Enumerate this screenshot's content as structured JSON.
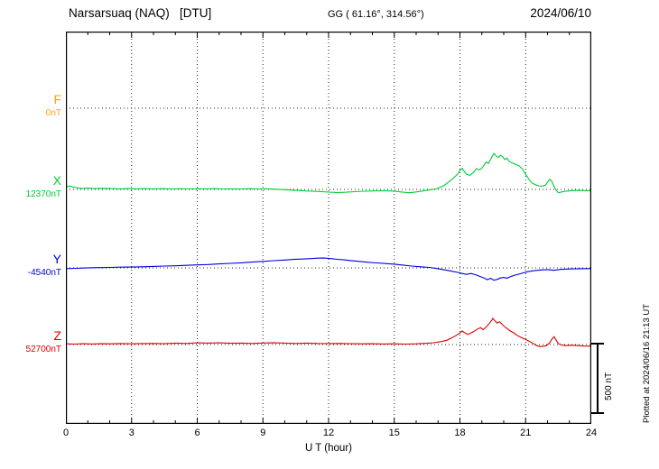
{
  "header": {
    "station_title": "Narsarsuaq (NAQ)   [DTU]",
    "gg_coords": "GG ( 61.16°, 314.56°)",
    "date": "2024/06/10"
  },
  "axis": {
    "xlabel": "U T (hour)",
    "xticks": [
      0,
      3,
      6,
      9,
      12,
      15,
      18,
      21,
      24
    ]
  },
  "scale_bar": {
    "label": "500 nT",
    "nT": 500
  },
  "footer_note": "Plotted at 2024/06/16 21:13 UT",
  "chart_data": {
    "type": "line",
    "title": "Narsarsuaq (NAQ) [DTU] magnetogram 2024/06/10",
    "xlabel": "U T (hour)",
    "x_range_hours": [
      0,
      24
    ],
    "x_major_tick_step_hours": 3,
    "scale_bar_nT": 500,
    "grid": "dotted vertical at 3h steps, dotted horizontal at each series baseline",
    "series": [
      {
        "name": "F",
        "label": "F",
        "baseline_label": "0nT",
        "baseline_nT": 0,
        "color": "#FFA500",
        "visible": false,
        "points": [
          [
            0,
            0
          ],
          [
            24,
            0
          ]
        ]
      },
      {
        "name": "X",
        "label": "X",
        "baseline_label": "12370nT",
        "baseline_nT": 12370,
        "color": "#00CC33",
        "visible": true,
        "points": [
          [
            0,
            18
          ],
          [
            0.2,
            24
          ],
          [
            0.4,
            14
          ],
          [
            0.6,
            9
          ],
          [
            0.8,
            7
          ],
          [
            1,
            10
          ],
          [
            1.3,
            6
          ],
          [
            1.6,
            8
          ],
          [
            2,
            7
          ],
          [
            2.4,
            4
          ],
          [
            2.8,
            6
          ],
          [
            3.2,
            4
          ],
          [
            3.6,
            6
          ],
          [
            4,
            4
          ],
          [
            4.4,
            6
          ],
          [
            4.8,
            3
          ],
          [
            5.2,
            5
          ],
          [
            5.6,
            3
          ],
          [
            6,
            5
          ],
          [
            6.4,
            4
          ],
          [
            6.8,
            6
          ],
          [
            7.2,
            3
          ],
          [
            7.6,
            4
          ],
          [
            8,
            3
          ],
          [
            8.4,
            5
          ],
          [
            8.8,
            3
          ],
          [
            9.2,
            4
          ],
          [
            9.6,
            1
          ],
          [
            10,
            -2
          ],
          [
            10.4,
            -6
          ],
          [
            10.8,
            -9
          ],
          [
            11.2,
            -12
          ],
          [
            11.6,
            -15
          ],
          [
            12,
            -19
          ],
          [
            12.4,
            -22
          ],
          [
            12.8,
            -20
          ],
          [
            13.2,
            -16
          ],
          [
            13.6,
            -13
          ],
          [
            14,
            -11
          ],
          [
            14.4,
            -10
          ],
          [
            14.8,
            -11
          ],
          [
            15.1,
            -14
          ],
          [
            15.4,
            -20
          ],
          [
            15.7,
            -24
          ],
          [
            16,
            -18
          ],
          [
            16.3,
            -11
          ],
          [
            16.6,
            -4
          ],
          [
            16.9,
            4
          ],
          [
            17.1,
            14
          ],
          [
            17.3,
            30
          ],
          [
            17.5,
            55
          ],
          [
            17.7,
            80
          ],
          [
            17.9,
            110
          ],
          [
            18,
            135
          ],
          [
            18.1,
            150
          ],
          [
            18.2,
            128
          ],
          [
            18.3,
            108
          ],
          [
            18.45,
            100
          ],
          [
            18.6,
            118
          ],
          [
            18.75,
            148
          ],
          [
            18.9,
            138
          ],
          [
            19,
            152
          ],
          [
            19.1,
            172
          ],
          [
            19.2,
            196
          ],
          [
            19.3,
            184
          ],
          [
            19.4,
            214
          ],
          [
            19.5,
            242
          ],
          [
            19.55,
            256
          ],
          [
            19.65,
            238
          ],
          [
            19.75,
            226
          ],
          [
            19.85,
            242
          ],
          [
            19.95,
            232
          ],
          [
            20.05,
            212
          ],
          [
            20.15,
            222
          ],
          [
            20.25,
            198
          ],
          [
            20.4,
            188
          ],
          [
            20.55,
            178
          ],
          [
            20.7,
            168
          ],
          [
            20.85,
            146
          ],
          [
            21,
            108
          ],
          [
            21.15,
            72
          ],
          [
            21.3,
            44
          ],
          [
            21.5,
            30
          ],
          [
            21.7,
            22
          ],
          [
            21.9,
            28
          ],
          [
            22,
            52
          ],
          [
            22.1,
            72
          ],
          [
            22.2,
            58
          ],
          [
            22.3,
            22
          ],
          [
            22.4,
            -8
          ],
          [
            22.5,
            -24
          ],
          [
            22.65,
            -18
          ],
          [
            22.85,
            -12
          ],
          [
            23.1,
            -9
          ],
          [
            23.4,
            -7
          ],
          [
            23.7,
            -9
          ],
          [
            24,
            -10
          ]
        ]
      },
      {
        "name": "Y",
        "label": "Y",
        "baseline_label": "-4540nT",
        "baseline_nT": -4540,
        "color": "#0000DD",
        "visible": true,
        "points": [
          [
            0,
            -5
          ],
          [
            0.4,
            -3
          ],
          [
            0.8,
            -1
          ],
          [
            1.2,
            1
          ],
          [
            1.6,
            2
          ],
          [
            2,
            3
          ],
          [
            2.5,
            5
          ],
          [
            3,
            6
          ],
          [
            3.5,
            8
          ],
          [
            4,
            10
          ],
          [
            4.5,
            13
          ],
          [
            5,
            15
          ],
          [
            5.5,
            18
          ],
          [
            6,
            21
          ],
          [
            6.5,
            24
          ],
          [
            7,
            28
          ],
          [
            7.5,
            32
          ],
          [
            8,
            36
          ],
          [
            8.5,
            41
          ],
          [
            9,
            46
          ],
          [
            9.5,
            51
          ],
          [
            10,
            56
          ],
          [
            10.4,
            60
          ],
          [
            10.8,
            63
          ],
          [
            11.2,
            66
          ],
          [
            11.5,
            69
          ],
          [
            11.8,
            70
          ],
          [
            12.1,
            66
          ],
          [
            12.4,
            61
          ],
          [
            12.7,
            57
          ],
          [
            13,
            52
          ],
          [
            13.4,
            46
          ],
          [
            13.8,
            40
          ],
          [
            14.2,
            35
          ],
          [
            14.6,
            31
          ],
          [
            15,
            26
          ],
          [
            15.4,
            20
          ],
          [
            15.8,
            13
          ],
          [
            16.2,
            8
          ],
          [
            16.6,
            3
          ],
          [
            17,
            -6
          ],
          [
            17.3,
            -14
          ],
          [
            17.6,
            -23
          ],
          [
            17.9,
            -32
          ],
          [
            18.1,
            -40
          ],
          [
            18.3,
            -46
          ],
          [
            18.5,
            -40
          ],
          [
            18.7,
            -48
          ],
          [
            18.9,
            -60
          ],
          [
            19.1,
            -72
          ],
          [
            19.25,
            -84
          ],
          [
            19.4,
            -74
          ],
          [
            19.55,
            -88
          ],
          [
            19.7,
            -82
          ],
          [
            19.85,
            -72
          ],
          [
            20,
            -68
          ],
          [
            20.15,
            -74
          ],
          [
            20.3,
            -62
          ],
          [
            20.5,
            -52
          ],
          [
            20.7,
            -44
          ],
          [
            20.9,
            -35
          ],
          [
            21.1,
            -27
          ],
          [
            21.4,
            -20
          ],
          [
            21.7,
            -15
          ],
          [
            22,
            -12
          ],
          [
            22.3,
            -17
          ],
          [
            22.6,
            -11
          ],
          [
            23,
            -8
          ],
          [
            23.5,
            -6
          ],
          [
            24,
            -5
          ]
        ]
      },
      {
        "name": "Z",
        "label": "Z",
        "baseline_label": "52700nT",
        "baseline_nT": 52700,
        "color": "#DD0000",
        "visible": true,
        "points": [
          [
            0,
            5
          ],
          [
            0.4,
            3
          ],
          [
            0.8,
            6
          ],
          [
            1.2,
            4
          ],
          [
            1.6,
            6
          ],
          [
            2,
            5
          ],
          [
            2.5,
            7
          ],
          [
            3,
            5
          ],
          [
            3.5,
            7
          ],
          [
            4,
            8
          ],
          [
            4.5,
            6
          ],
          [
            5,
            10
          ],
          [
            5.5,
            8
          ],
          [
            6,
            12
          ],
          [
            6.5,
            10
          ],
          [
            7,
            12
          ],
          [
            7.5,
            9
          ],
          [
            8,
            10
          ],
          [
            8.5,
            8
          ],
          [
            9,
            11
          ],
          [
            9.5,
            12
          ],
          [
            10,
            10
          ],
          [
            10.5,
            8
          ],
          [
            11,
            10
          ],
          [
            11.5,
            8
          ],
          [
            12,
            7
          ],
          [
            12.5,
            8
          ],
          [
            13,
            6
          ],
          [
            13.5,
            5
          ],
          [
            14,
            6
          ],
          [
            14.5,
            4
          ],
          [
            15,
            5
          ],
          [
            15.5,
            3
          ],
          [
            16,
            5
          ],
          [
            16.5,
            9
          ],
          [
            16.8,
            13
          ],
          [
            17.1,
            20
          ],
          [
            17.4,
            30
          ],
          [
            17.6,
            45
          ],
          [
            17.8,
            62
          ],
          [
            18,
            82
          ],
          [
            18.1,
            96
          ],
          [
            18.2,
            86
          ],
          [
            18.35,
            72
          ],
          [
            18.5,
            82
          ],
          [
            18.65,
            94
          ],
          [
            18.8,
            110
          ],
          [
            18.95,
            120
          ],
          [
            19.05,
            106
          ],
          [
            19.15,
            118
          ],
          [
            19.25,
            134
          ],
          [
            19.35,
            152
          ],
          [
            19.45,
            172
          ],
          [
            19.5,
            186
          ],
          [
            19.6,
            168
          ],
          [
            19.7,
            152
          ],
          [
            19.8,
            162
          ],
          [
            19.9,
            148
          ],
          [
            20,
            132
          ],
          [
            20.15,
            114
          ],
          [
            20.3,
            96
          ],
          [
            20.45,
            84
          ],
          [
            20.6,
            66
          ],
          [
            20.75,
            54
          ],
          [
            20.9,
            42
          ],
          [
            21.05,
            32
          ],
          [
            21.2,
            20
          ],
          [
            21.35,
            8
          ],
          [
            21.5,
            -8
          ],
          [
            21.65,
            -14
          ],
          [
            21.8,
            -12
          ],
          [
            21.95,
            -8
          ],
          [
            22.1,
            12
          ],
          [
            22.2,
            38
          ],
          [
            22.3,
            56
          ],
          [
            22.4,
            30
          ],
          [
            22.5,
            6
          ],
          [
            22.65,
            -4
          ],
          [
            22.85,
            -8
          ],
          [
            23.1,
            -5
          ],
          [
            23.4,
            -8
          ],
          [
            23.7,
            -11
          ],
          [
            24,
            -12
          ]
        ]
      }
    ]
  }
}
